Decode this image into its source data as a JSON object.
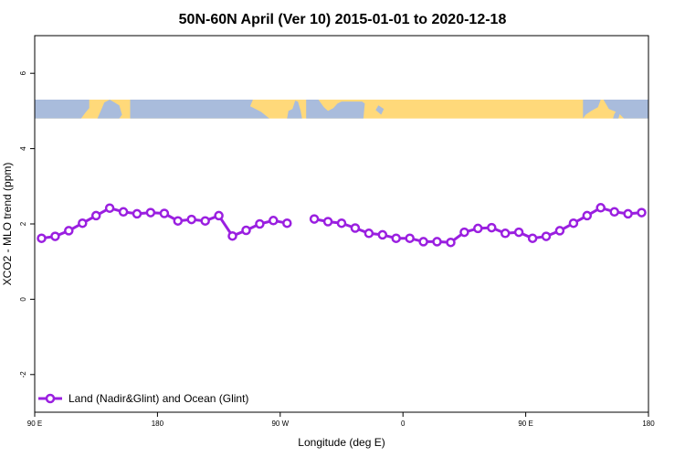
{
  "chart_data": {
    "type": "line",
    "title": "50N-60N April (Ver 10)   2015-01-01 to 2020-12-18",
    "xlabel": "Longitude (deg E)",
    "ylabel": "XCO2 - MLO trend (ppm)",
    "x_ticks": [
      {
        "value": 90,
        "label": "90 E"
      },
      {
        "value": 180,
        "label": "180"
      },
      {
        "value": 270,
        "label": "90 W"
      },
      {
        "value": 360,
        "label": "0"
      },
      {
        "value": 450,
        "label": "90 E"
      },
      {
        "value": 540,
        "label": "180"
      }
    ],
    "xlim": [
      90,
      540
    ],
    "ylim": [
      -3,
      7
    ],
    "y_ticks": [
      -2,
      0,
      2,
      4,
      6
    ],
    "grid": false,
    "legend_position": "bottom-left",
    "map_strip": {
      "y_range": [
        4.8,
        5.3
      ],
      "land_color": "#FFD97A",
      "ocean_color": "#A9BCDC"
    },
    "series": [
      {
        "name": "Land (Nadir&Glint) and Ocean (Glint)",
        "color": "#9A1FE0",
        "segments": [
          [
            [
              95,
              1.62
            ],
            [
              105,
              1.67
            ],
            [
              115,
              1.82
            ],
            [
              125,
              2.02
            ],
            [
              135,
              2.22
            ],
            [
              145,
              2.42
            ],
            [
              155,
              2.32
            ],
            [
              165,
              2.27
            ],
            [
              175,
              2.3
            ],
            [
              185,
              2.28
            ],
            [
              195,
              2.08
            ],
            [
              205,
              2.12
            ],
            [
              215,
              2.08
            ],
            [
              225,
              2.22
            ],
            [
              235,
              1.68
            ],
            [
              245,
              1.83
            ],
            [
              255,
              2.0
            ],
            [
              265,
              2.09
            ],
            [
              275,
              2.02
            ]
          ],
          [
            [
              295,
              2.13
            ],
            [
              305,
              2.06
            ],
            [
              315,
              2.02
            ],
            [
              325,
              1.89
            ],
            [
              335,
              1.75
            ],
            [
              345,
              1.71
            ],
            [
              355,
              1.62
            ],
            [
              365,
              1.62
            ],
            [
              375,
              1.53
            ],
            [
              385,
              1.53
            ],
            [
              395,
              1.51
            ],
            [
              405,
              1.78
            ],
            [
              415,
              1.88
            ],
            [
              425,
              1.9
            ],
            [
              435,
              1.75
            ],
            [
              445,
              1.78
            ],
            [
              455,
              1.62
            ],
            [
              465,
              1.67
            ],
            [
              475,
              1.82
            ],
            [
              485,
              2.02
            ],
            [
              495,
              2.22
            ],
            [
              505,
              2.43
            ],
            [
              515,
              2.32
            ],
            [
              525,
              2.27
            ],
            [
              535,
              2.3
            ]
          ]
        ]
      }
    ]
  }
}
